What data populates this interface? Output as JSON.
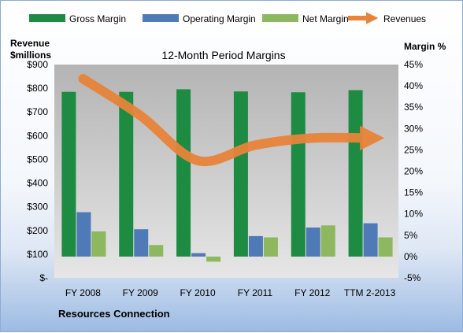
{
  "chart_data": {
    "type": "bar",
    "title": "12-Month Period Margins",
    "company": "Resources Connection",
    "y_left_label_line1": "Revenue",
    "y_left_label_line2": "$millions",
    "y_right_label": "Margin %",
    "categories": [
      "FY 2008",
      "FY 2009",
      "FY 2010",
      "FY 2011",
      "FY 2012",
      "TTM 2-2013"
    ],
    "y_left_ticks": [
      "$900",
      "$800",
      "$700",
      "$600",
      "$500",
      "$400",
      "$300",
      "$200",
      "$100",
      "$-"
    ],
    "y_right_ticks": [
      "45%",
      "40%",
      "35%",
      "30%",
      "25%",
      "20%",
      "15%",
      "10%",
      "5%",
      "0%",
      "-5%"
    ],
    "ylim_left": [
      0,
      900
    ],
    "ylim_right": [
      -5,
      45
    ],
    "grid": false,
    "legend_position": "top",
    "series": [
      {
        "name": "Gross Margin",
        "axis": "right",
        "color": "#1e8b43",
        "values": [
          38.6,
          38.6,
          39.2,
          38.7,
          38.5,
          39.0
        ]
      },
      {
        "name": "Operating Margin",
        "axis": "right",
        "color": "#4f7ab8",
        "values": [
          10.4,
          6.4,
          0.8,
          4.8,
          6.8,
          7.8
        ]
      },
      {
        "name": "Net Margin",
        "axis": "right",
        "color": "#8db85f",
        "values": [
          5.9,
          2.7,
          -1.2,
          4.5,
          7.3,
          4.5
        ]
      },
      {
        "name": "Revenues",
        "axis": "left",
        "color": "#e8843a",
        "type": "line",
        "values": [
          840,
          685,
          495,
          560,
          590,
          590
        ]
      }
    ]
  }
}
